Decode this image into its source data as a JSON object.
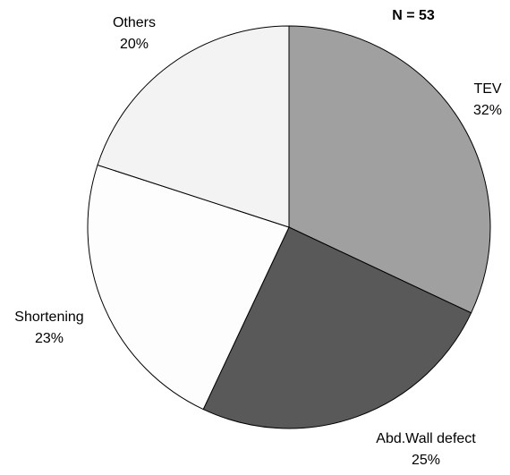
{
  "chart_data": {
    "type": "pie",
    "title": "N = 53",
    "categories": [
      "TEV",
      "Abd.Wall defect",
      "Shortening",
      "Others"
    ],
    "values": [
      32,
      25,
      23,
      20
    ],
    "value_labels": [
      "32%",
      "25%",
      "23%",
      "20%"
    ],
    "colors": [
      "#a0a0a0",
      "#595959",
      "#fdfdfd",
      "#f3f3f3"
    ]
  }
}
